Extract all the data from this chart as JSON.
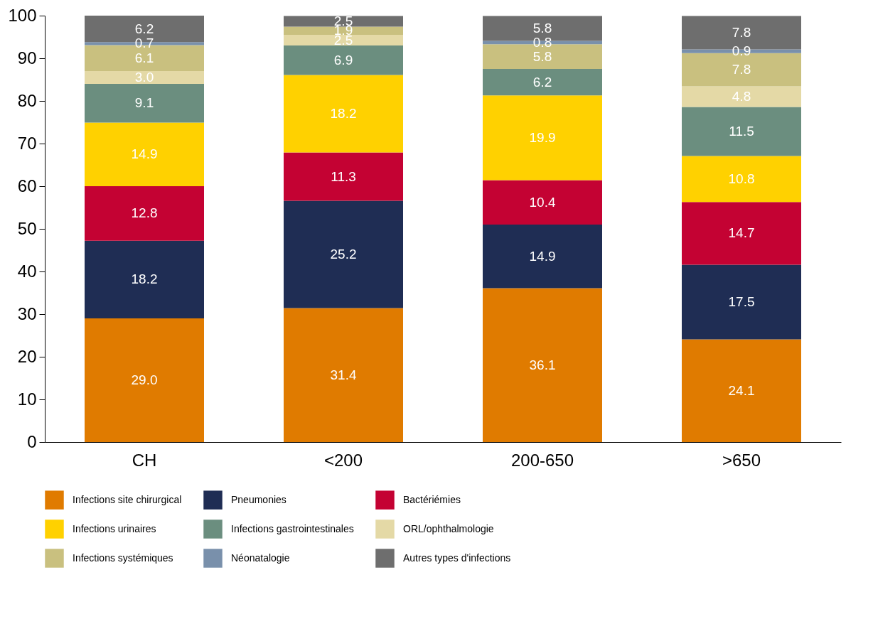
{
  "chart_data": {
    "type": "bar",
    "stacked": true,
    "categories": [
      "CH",
      "<200",
      "200-650",
      ">650"
    ],
    "series": [
      {
        "name": "Infections site chirurgical",
        "color": "#e07b00",
        "values": [
          29.0,
          31.4,
          36.1,
          24.1
        ],
        "value_labels": [
          "29.0",
          "31.4",
          "36.1",
          "24.1"
        ]
      },
      {
        "name": "Pneumonies",
        "color": "#1f2d54",
        "values": [
          18.2,
          25.2,
          14.9,
          17.5
        ],
        "value_labels": [
          "18.2",
          "25.2",
          "14.9",
          "17.5"
        ]
      },
      {
        "name": "Bactériémies",
        "color": "#c40233",
        "values": [
          12.8,
          11.3,
          10.4,
          14.7
        ],
        "value_labels": [
          "12.8",
          "11.3",
          "10.4",
          "14.7"
        ]
      },
      {
        "name": "Infections urinaires",
        "color": "#ffd100",
        "values": [
          14.9,
          18.2,
          19.9,
          10.8
        ],
        "value_labels": [
          "14.9",
          "18.2",
          "19.9",
          "10.8"
        ]
      },
      {
        "name": "Infections gastrointestinales",
        "color": "#6b8e7f",
        "values": [
          9.1,
          6.9,
          6.2,
          11.5
        ],
        "value_labels": [
          "9.1",
          "6.9",
          "6.2",
          "11.5"
        ]
      },
      {
        "name": "ORL/ophthalmologie",
        "color": "#e4d9a6",
        "values": [
          3.0,
          2.5,
          null,
          4.8
        ],
        "value_labels": [
          "3.0",
          "2.5",
          null,
          "4.8"
        ]
      },
      {
        "name": "Infections systémiques",
        "color": "#c9c07f",
        "values": [
          6.1,
          1.9,
          5.8,
          7.8
        ],
        "value_labels": [
          "6.1",
          "1.9",
          "5.8",
          "7.8"
        ]
      },
      {
        "name": "Néonatalogie",
        "color": "#7990ab",
        "values": [
          0.7,
          null,
          0.8,
          0.9
        ],
        "value_labels": [
          "0.7",
          null,
          "0.8",
          "0.9"
        ]
      },
      {
        "name": "Autres types d'infections",
        "color": "#6e6e6e",
        "values": [
          6.2,
          2.5,
          5.8,
          7.8
        ],
        "value_labels": [
          "6.2",
          "2.5",
          "5.8",
          "7.8"
        ]
      }
    ],
    "ylim": [
      0,
      100
    ],
    "yticks": [
      0,
      10,
      20,
      30,
      40,
      50,
      60,
      70,
      80,
      90,
      100
    ],
    "grid": false,
    "legend": "bottom"
  }
}
